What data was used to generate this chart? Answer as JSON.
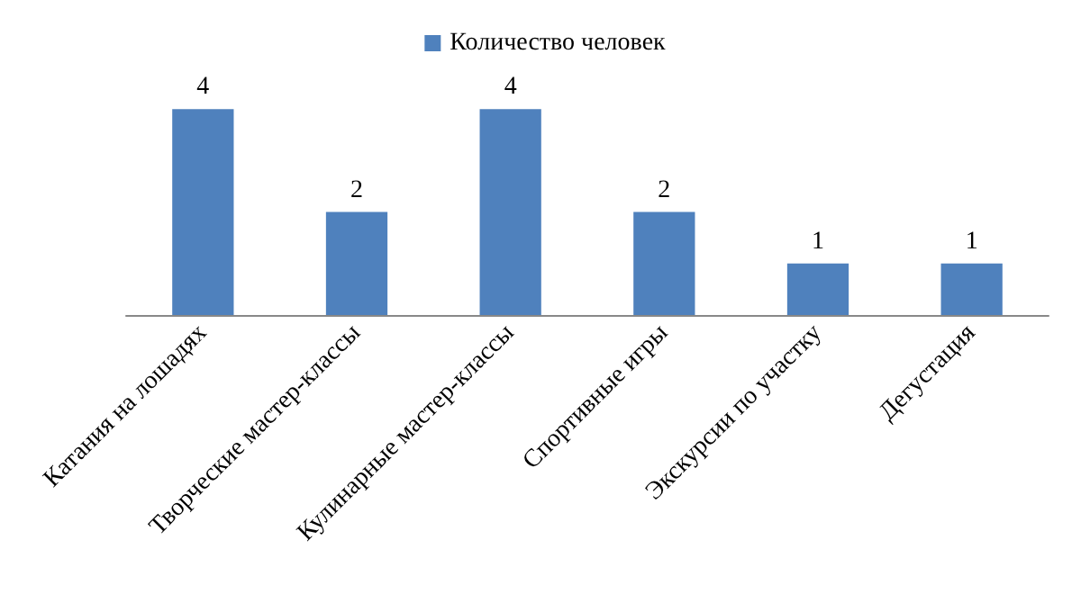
{
  "chart_data": {
    "type": "bar",
    "categories": [
      "Катания на лошадях",
      "Творческие мастер-классы",
      "Кулинарные мастер-классы",
      "Спортивные игры",
      "Экскурсии по участку",
      "Дегустация"
    ],
    "series": [
      {
        "name": "Количество человек",
        "color": "#4f81bd",
        "values": [
          4,
          2,
          4,
          2,
          1,
          1
        ]
      }
    ],
    "data_labels": true,
    "legend": "top",
    "grid": false
  }
}
